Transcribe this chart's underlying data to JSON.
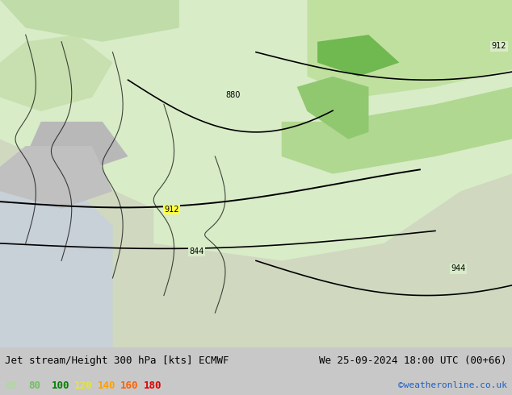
{
  "title_left": "Jet stream/Height 300 hPa [kts] ECMWF",
  "title_right": "We 25-09-2024 18:00 UTC (00+66)",
  "credit": "©weatheronline.co.uk",
  "legend_values": [
    60,
    80,
    100,
    120,
    140,
    160,
    180
  ],
  "legend_colors": [
    "#a0e0a0",
    "#40c040",
    "#008000",
    "#ffff00",
    "#ffc000",
    "#ff8000",
    "#ff0000"
  ],
  "bg_color": "#e8e8e8",
  "map_bg": "#d8d8d8",
  "sea_color": "#d0d8e8",
  "land_light": "#e8f5e0",
  "land_mid": "#b8e0a0",
  "land_dark": "#80c060",
  "jet_yellow": "#ffff00",
  "jet_orange": "#ff8000",
  "contour_color": "#000000",
  "figsize": [
    6.34,
    4.9
  ],
  "dpi": 100,
  "title_fontsize": 9,
  "legend_fontsize": 9,
  "credit_fontsize": 8
}
